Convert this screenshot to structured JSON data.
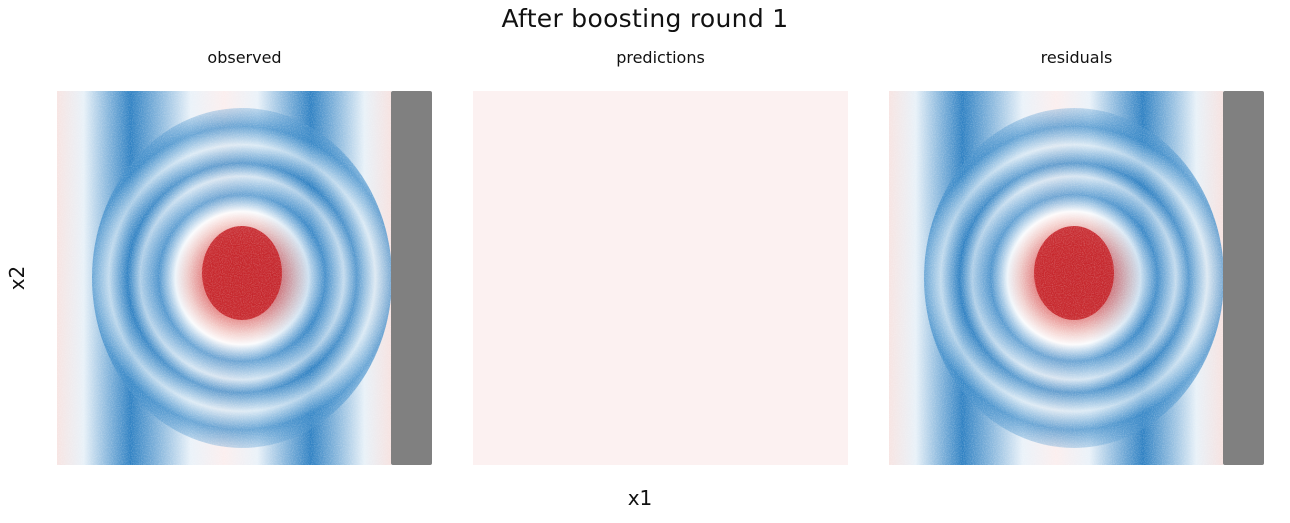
{
  "figure": {
    "title": "After boosting round 1",
    "xlabel": "x1",
    "ylabel": "x2"
  },
  "colors": {
    "negative_strong": "#1f78c0",
    "neutral": "#ffffff",
    "positive_strong": "#c42127",
    "prediction_fill": "#fcf1f1",
    "masked_strip": "#808080"
  },
  "chart_data": [
    {
      "type": "heatmap",
      "title": "observed",
      "xlabel": "x1",
      "ylabel": "x2",
      "colormap": "diverging red-white-blue",
      "pattern": "central positive (red) blob surrounded by concentric negative (blue) rings, vertical blue bands left and right",
      "masked_right_strip": true,
      "grid": false
    },
    {
      "type": "heatmap",
      "title": "predictions",
      "xlabel": "x1",
      "ylabel": "x2",
      "colormap": "diverging red-white-blue",
      "pattern": "uniform near-zero slightly positive value across entire field",
      "masked_right_strip": false,
      "grid": false
    },
    {
      "type": "heatmap",
      "title": "residuals",
      "xlabel": "x1",
      "ylabel": "x2",
      "colormap": "diverging red-white-blue",
      "pattern": "central positive (red) blob surrounded by concentric negative (blue) rings, vertical blue bands left and right",
      "masked_right_strip": true,
      "grid": false
    }
  ]
}
